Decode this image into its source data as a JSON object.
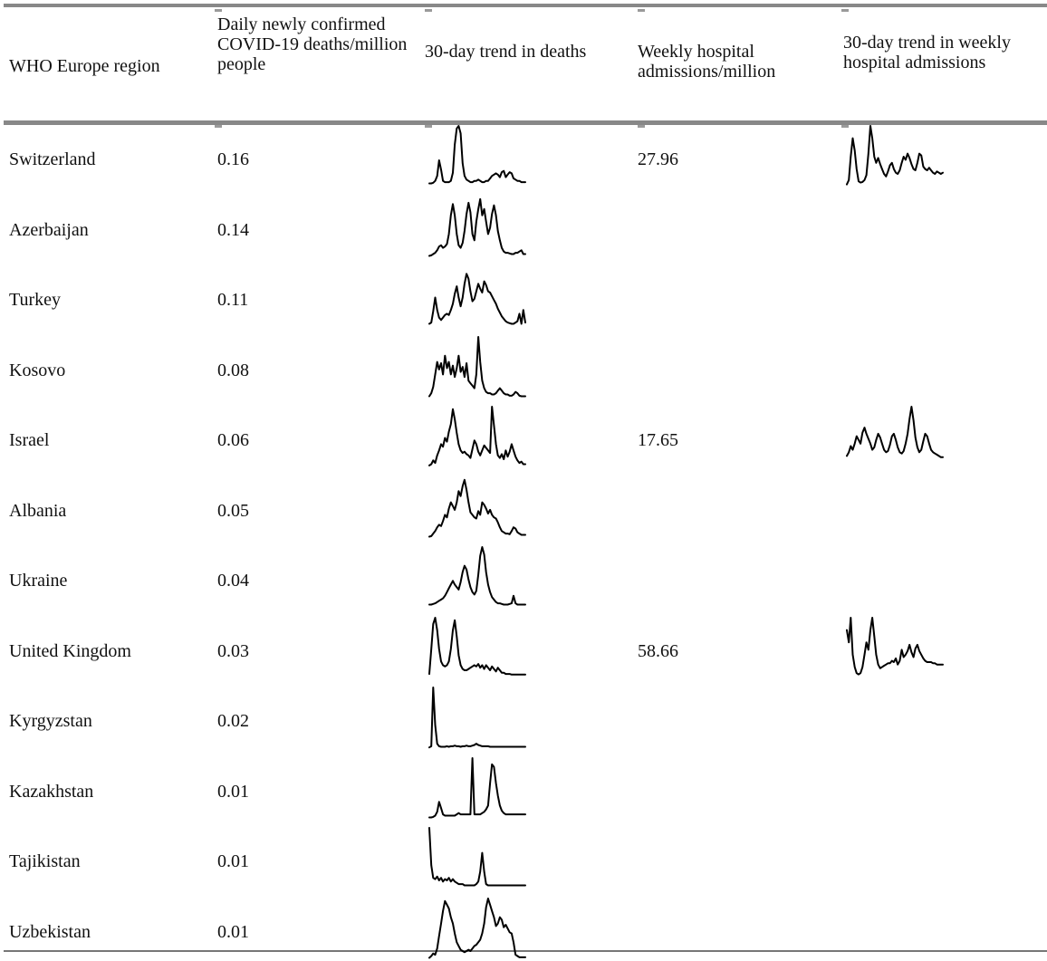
{
  "headers": {
    "region": "WHO Europe region",
    "deaths": "Daily newly confirmed COVID-19 deaths/million people",
    "deaths_trend": "30-day trend in deaths",
    "hosp": "Weekly hospital admissions/million",
    "hosp_trend": "30-day trend in weekly hospital admissions"
  },
  "rows": [
    {
      "region": "Switzerland",
      "deaths": "0.16",
      "hosp": "27.96",
      "deaths_trend": [
        8,
        8,
        9,
        12,
        20,
        45,
        30,
        12,
        10,
        10,
        10,
        12,
        25,
        70,
        96,
        100,
        88,
        40,
        20,
        14,
        12,
        10,
        10,
        12,
        12,
        14,
        12,
        10,
        10,
        12,
        12,
        16,
        20,
        22,
        24,
        22,
        18,
        26,
        28,
        18,
        22,
        26,
        24,
        16,
        14,
        12,
        12,
        10,
        10,
        10
      ],
      "hosp_trend": [
        5,
        12,
        50,
        80,
        60,
        30,
        10,
        8,
        9,
        12,
        20,
        55,
        100,
        80,
        50,
        40,
        48,
        38,
        30,
        22,
        18,
        26,
        36,
        40,
        30,
        24,
        22,
        28,
        40,
        50,
        45,
        55,
        48,
        38,
        30,
        28,
        40,
        55,
        52,
        34,
        30,
        28,
        32,
        28,
        24,
        22,
        26,
        24,
        22,
        24
      ]
    },
    {
      "region": "Azerbaijan",
      "deaths": "0.14",
      "deaths_trend": [
        5,
        6,
        8,
        10,
        14,
        20,
        22,
        18,
        20,
        24,
        40,
        70,
        88,
        70,
        40,
        22,
        18,
        26,
        45,
        72,
        90,
        75,
        40,
        30,
        60,
        80,
        96,
        70,
        80,
        60,
        40,
        50,
        72,
        86,
        70,
        45,
        30,
        18,
        12,
        10,
        10,
        9,
        8,
        8,
        10,
        10,
        12,
        14,
        8,
        8
      ]
    },
    {
      "region": "Turkey",
      "deaths": "0.11",
      "deaths_trend": [
        8,
        10,
        28,
        50,
        30,
        18,
        14,
        18,
        22,
        24,
        22,
        30,
        40,
        56,
        68,
        50,
        36,
        50,
        72,
        88,
        80,
        60,
        44,
        48,
        60,
        72,
        64,
        58,
        76,
        70,
        60,
        58,
        52,
        46,
        40,
        32,
        26,
        20,
        16,
        12,
        10,
        9,
        8,
        8,
        10,
        12,
        24,
        8,
        30,
        10
      ]
    },
    {
      "region": "Kosovo",
      "deaths": "0.08",
      "deaths_trend": [
        5,
        10,
        20,
        40,
        60,
        48,
        58,
        40,
        70,
        50,
        60,
        40,
        54,
        36,
        50,
        70,
        44,
        52,
        36,
        58,
        30,
        26,
        22,
        18,
        40,
        100,
        60,
        30,
        18,
        12,
        10,
        10,
        8,
        8,
        10,
        14,
        18,
        14,
        10,
        8,
        8,
        6,
        6,
        8,
        12,
        10,
        6,
        5,
        5,
        5
      ]
    },
    {
      "region": "Israel",
      "deaths": "0.06",
      "hosp": "17.65",
      "deaths_trend": [
        6,
        8,
        14,
        10,
        22,
        30,
        40,
        36,
        50,
        44,
        60,
        72,
        96,
        80,
        58,
        40,
        30,
        26,
        28,
        24,
        22,
        18,
        32,
        46,
        40,
        28,
        22,
        30,
        38,
        34,
        30,
        26,
        100,
        70,
        40,
        22,
        18,
        24,
        16,
        30,
        20,
        28,
        40,
        30,
        20,
        14,
        10,
        12,
        8,
        8
      ],
      "hosp_trend": [
        20,
        26,
        36,
        30,
        40,
        52,
        46,
        40,
        58,
        66,
        56,
        48,
        40,
        30,
        34,
        46,
        56,
        50,
        40,
        30,
        26,
        28,
        38,
        52,
        56,
        46,
        34,
        26,
        24,
        28,
        40,
        56,
        80,
        100,
        78,
        50,
        34,
        26,
        30,
        44,
        56,
        52,
        40,
        30,
        26,
        24,
        22,
        20,
        18,
        18
      ]
    },
    {
      "region": "Albania",
      "deaths": "0.05",
      "deaths_trend": [
        5,
        6,
        10,
        14,
        20,
        24,
        22,
        30,
        40,
        36,
        50,
        60,
        54,
        48,
        60,
        78,
        70,
        86,
        96,
        80,
        60,
        44,
        40,
        36,
        34,
        46,
        40,
        60,
        56,
        50,
        42,
        48,
        40,
        36,
        34,
        28,
        20,
        14,
        12,
        10,
        10,
        9,
        14,
        20,
        18,
        12,
        10,
        8,
        8,
        8
      ]
    },
    {
      "region": "Ukraine",
      "deaths": "0.04",
      "deaths_trend": [
        8,
        8,
        9,
        10,
        12,
        14,
        16,
        18,
        22,
        28,
        34,
        40,
        46,
        40,
        36,
        32,
        44,
        60,
        70,
        64,
        48,
        36,
        28,
        24,
        30,
        56,
        86,
        100,
        88,
        60,
        40,
        28,
        20,
        16,
        12,
        10,
        10,
        9,
        8,
        8,
        8,
        9,
        10,
        22,
        10,
        8,
        8,
        8,
        8,
        8
      ]
    },
    {
      "region": "United Kingdom",
      "deaths": "0.03",
      "hosp": "58.66",
      "deaths_trend": [
        10,
        50,
        90,
        100,
        80,
        50,
        30,
        24,
        22,
        24,
        30,
        50,
        80,
        96,
        70,
        40,
        24,
        18,
        16,
        16,
        18,
        20,
        22,
        24,
        22,
        26,
        20,
        24,
        18,
        24,
        20,
        16,
        22,
        18,
        14,
        20,
        16,
        12,
        12,
        10,
        10,
        10,
        9,
        9,
        9,
        9,
        9,
        9,
        9,
        9
      ],
      "hosp_trend": [
        80,
        60,
        100,
        40,
        20,
        10,
        8,
        10,
        20,
        40,
        60,
        48,
        80,
        100,
        70,
        40,
        24,
        18,
        20,
        22,
        24,
        26,
        26,
        30,
        28,
        34,
        24,
        30,
        48,
        36,
        40,
        46,
        56,
        44,
        36,
        50,
        56,
        46,
        40,
        34,
        30,
        28,
        28,
        28,
        26,
        26,
        24,
        24,
        24,
        24
      ]
    },
    {
      "region": "Kyrgyzstan",
      "deaths": "0.02",
      "deaths_trend": [
        4,
        6,
        100,
        40,
        10,
        6,
        5,
        5,
        5,
        6,
        5,
        6,
        6,
        7,
        6,
        6,
        5,
        6,
        6,
        7,
        6,
        6,
        7,
        8,
        10,
        8,
        7,
        6,
        6,
        6,
        6,
        5,
        5,
        5,
        5,
        5,
        5,
        5,
        5,
        5,
        5,
        5,
        5,
        5,
        5,
        5,
        5,
        5,
        5,
        5
      ]
    },
    {
      "region": "Kazakhstan",
      "deaths": "0.01",
      "deaths_trend": [
        5,
        5,
        6,
        8,
        14,
        30,
        20,
        10,
        8,
        8,
        8,
        8,
        8,
        8,
        10,
        12,
        10,
        10,
        10,
        10,
        10,
        10,
        100,
        10,
        10,
        10,
        10,
        12,
        14,
        18,
        24,
        60,
        90,
        86,
        60,
        40,
        24,
        16,
        12,
        10,
        10,
        10,
        10,
        10,
        10,
        10,
        10,
        10,
        10,
        10
      ]
    },
    {
      "region": "Tajikistan",
      "deaths": "0.01",
      "deaths_trend": [
        100,
        40,
        20,
        18,
        22,
        16,
        20,
        14,
        18,
        16,
        20,
        14,
        18,
        14,
        12,
        10,
        10,
        10,
        8,
        8,
        8,
        8,
        8,
        8,
        10,
        14,
        30,
        60,
        30,
        10,
        8,
        8,
        8,
        8,
        8,
        8,
        8,
        8,
        8,
        8,
        8,
        8,
        8,
        8,
        8,
        8,
        8,
        8,
        8,
        8
      ]
    },
    {
      "region": "Uzbekistan",
      "deaths": "0.01",
      "deaths_trend": [
        5,
        8,
        12,
        10,
        20,
        40,
        60,
        80,
        96,
        90,
        84,
        70,
        60,
        44,
        30,
        24,
        18,
        16,
        14,
        16,
        18,
        16,
        20,
        24,
        26,
        30,
        34,
        44,
        60,
        86,
        100,
        90,
        80,
        70,
        56,
        60,
        70,
        66,
        54,
        58,
        52,
        46,
        44,
        30,
        10,
        8,
        6,
        6,
        6,
        6
      ]
    }
  ]
}
